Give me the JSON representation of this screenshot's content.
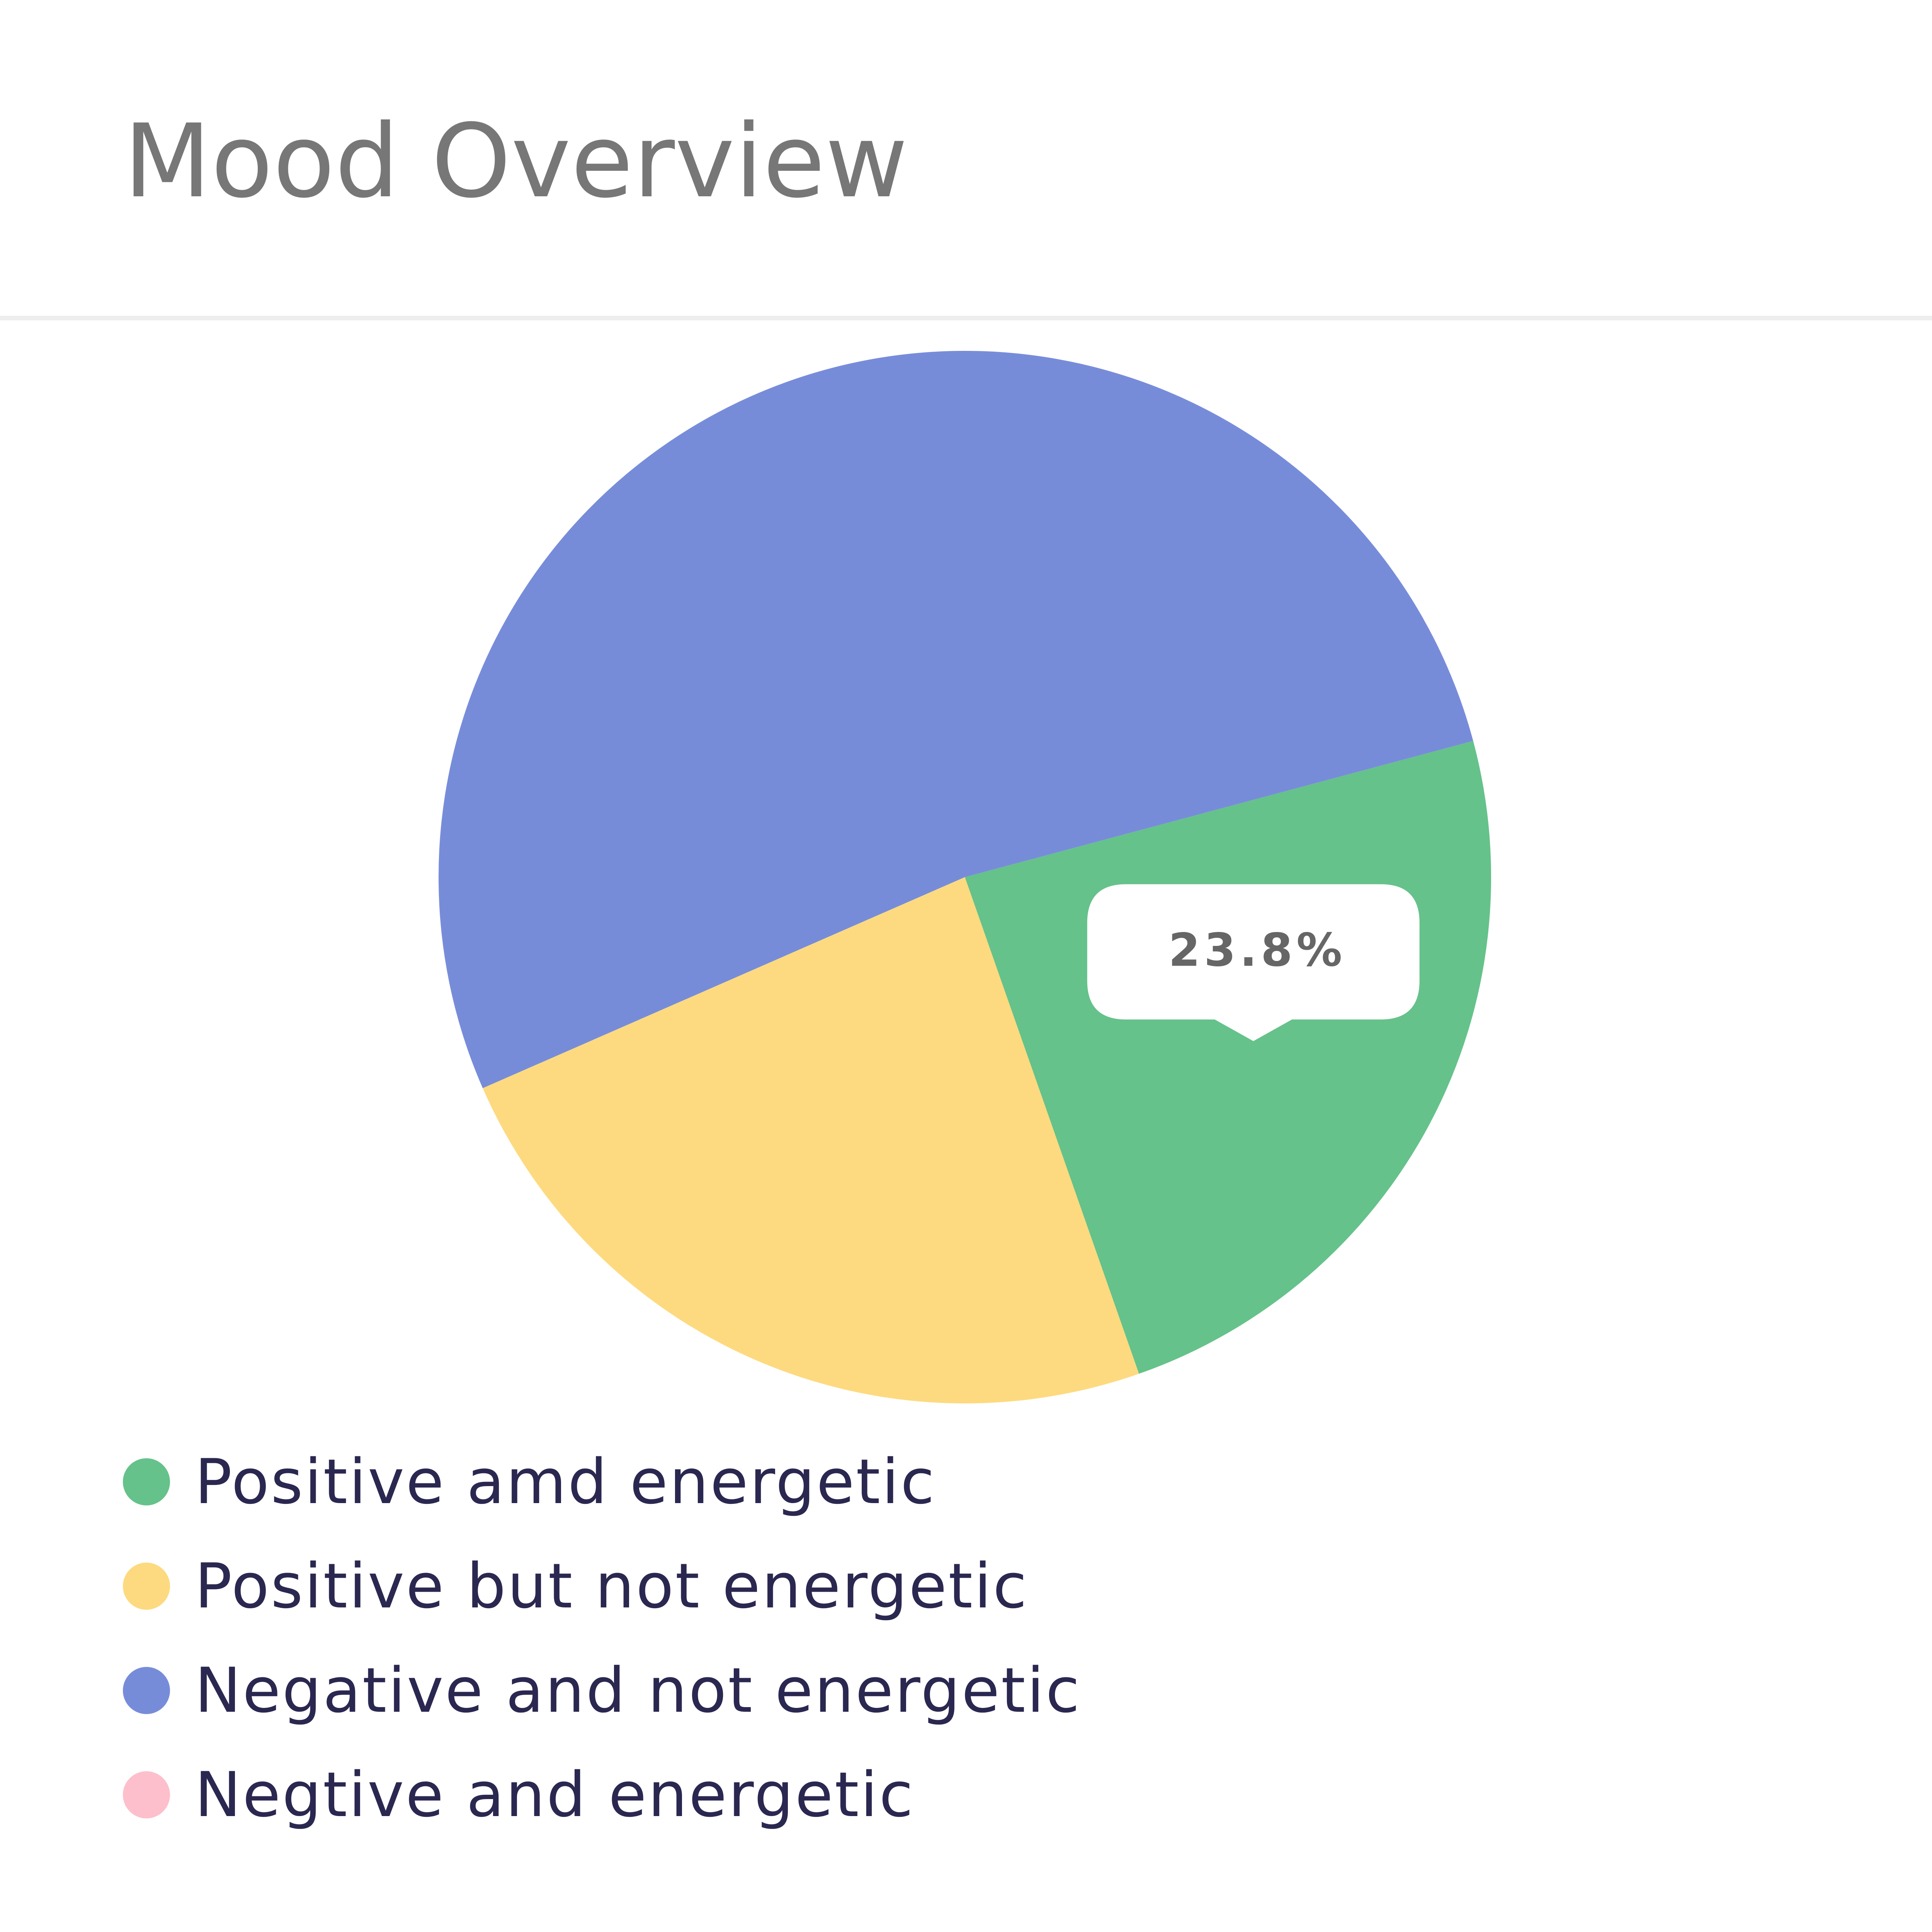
{
  "header": {
    "title": "Mood Overview"
  },
  "chart_data": {
    "type": "pie",
    "categories": [
      "Positive amd energetic",
      "Positive but not energetic",
      "Negative and not energetic",
      "Negtive and energetic"
    ],
    "values": [
      23.8,
      23.8,
      52.4,
      0
    ],
    "colors": [
      "#65c28a",
      "#fdda7f",
      "#778cd9",
      "#fdbfcc"
    ],
    "start_angle_deg": -15,
    "tooltip": {
      "category": "Positive amd energetic",
      "text": "23.8%"
    },
    "legend_position": "bottom-left"
  }
}
